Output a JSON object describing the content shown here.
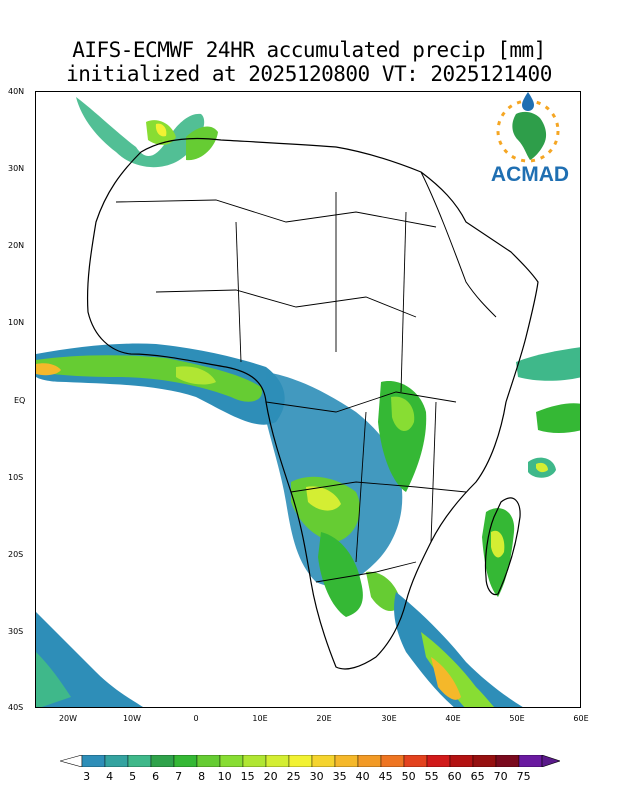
{
  "title": {
    "line1": "AIFS-ECMWF 24HR accumulated precip [mm]",
    "line2": "initialized at 2025120800 VT: 2025121400"
  },
  "logo": {
    "text": "ACMAD"
  },
  "axes": {
    "lat_labels": [
      "40N",
      "30N",
      "20N",
      "10N",
      "EQ",
      "10S",
      "20S",
      "30S",
      "40S"
    ],
    "lon_labels": [
      "20W",
      "10W",
      "0",
      "10E",
      "20E",
      "30E",
      "40E",
      "50E",
      "60E"
    ]
  },
  "colorbar": {
    "levels": [
      "3",
      "4",
      "5",
      "6",
      "7",
      "8",
      "10",
      "15",
      "20",
      "25",
      "30",
      "35",
      "40",
      "45",
      "50",
      "55",
      "60",
      "65",
      "70",
      "75"
    ],
    "colors": [
      "#2e8eb8",
      "#34a3a0",
      "#3fb88a",
      "#2fa24b",
      "#35b835",
      "#66cc33",
      "#88dd33",
      "#b0e633",
      "#d4ee33",
      "#f2f233",
      "#f5d42e",
      "#f5b82a",
      "#f29a26",
      "#ee7522",
      "#e3421e",
      "#d11a1a",
      "#b31212",
      "#961010",
      "#7a0a1e",
      "#6a1aa0"
    ]
  }
}
